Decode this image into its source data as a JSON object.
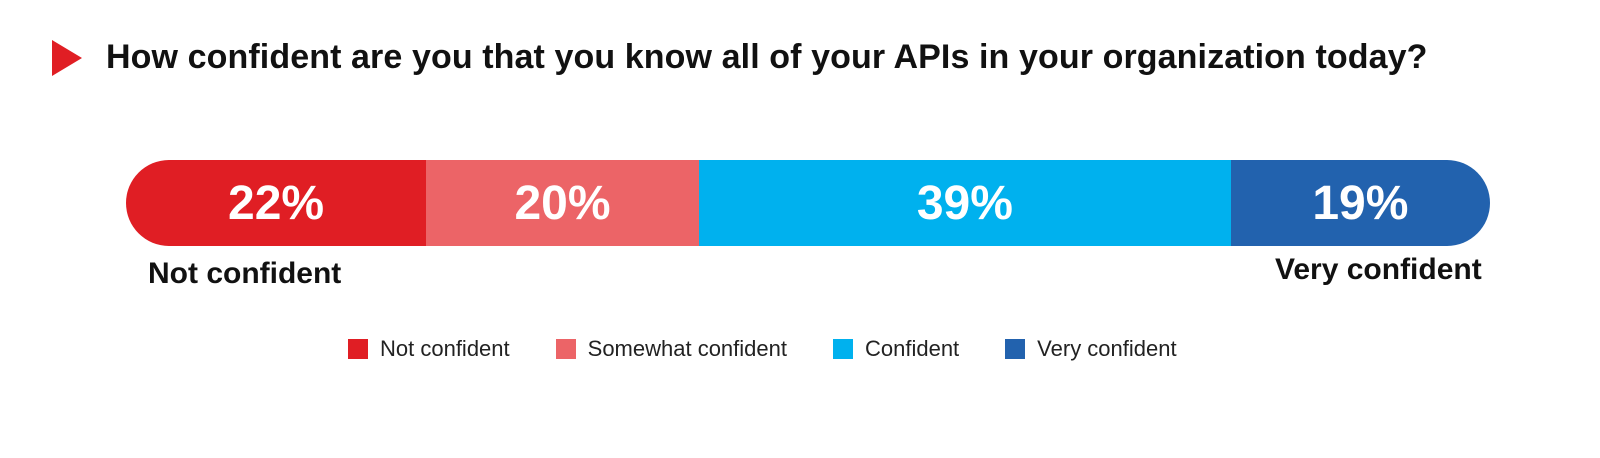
{
  "chart_data": {
    "type": "bar",
    "orientation": "horizontal-stacked-100",
    "title": "How confident are you that you know all of your APIs in your organization today?",
    "categories": [
      "Not confident",
      "Somewhat confident",
      "Confident",
      "Very confident"
    ],
    "values": [
      22,
      20,
      39,
      19
    ],
    "value_labels": [
      "22%",
      "20%",
      "39%",
      "19%"
    ],
    "colors": [
      "#e01e24",
      "#ec6467",
      "#00b1ee",
      "#2262ae"
    ],
    "scale_labels": {
      "left": "Not confident",
      "right": "Very confident"
    },
    "legend": {
      "position": "bottom",
      "entries": [
        "Not confident",
        "Somewhat confident",
        "Confident",
        "Very confident"
      ]
    },
    "accent_color": "#e01e24"
  }
}
